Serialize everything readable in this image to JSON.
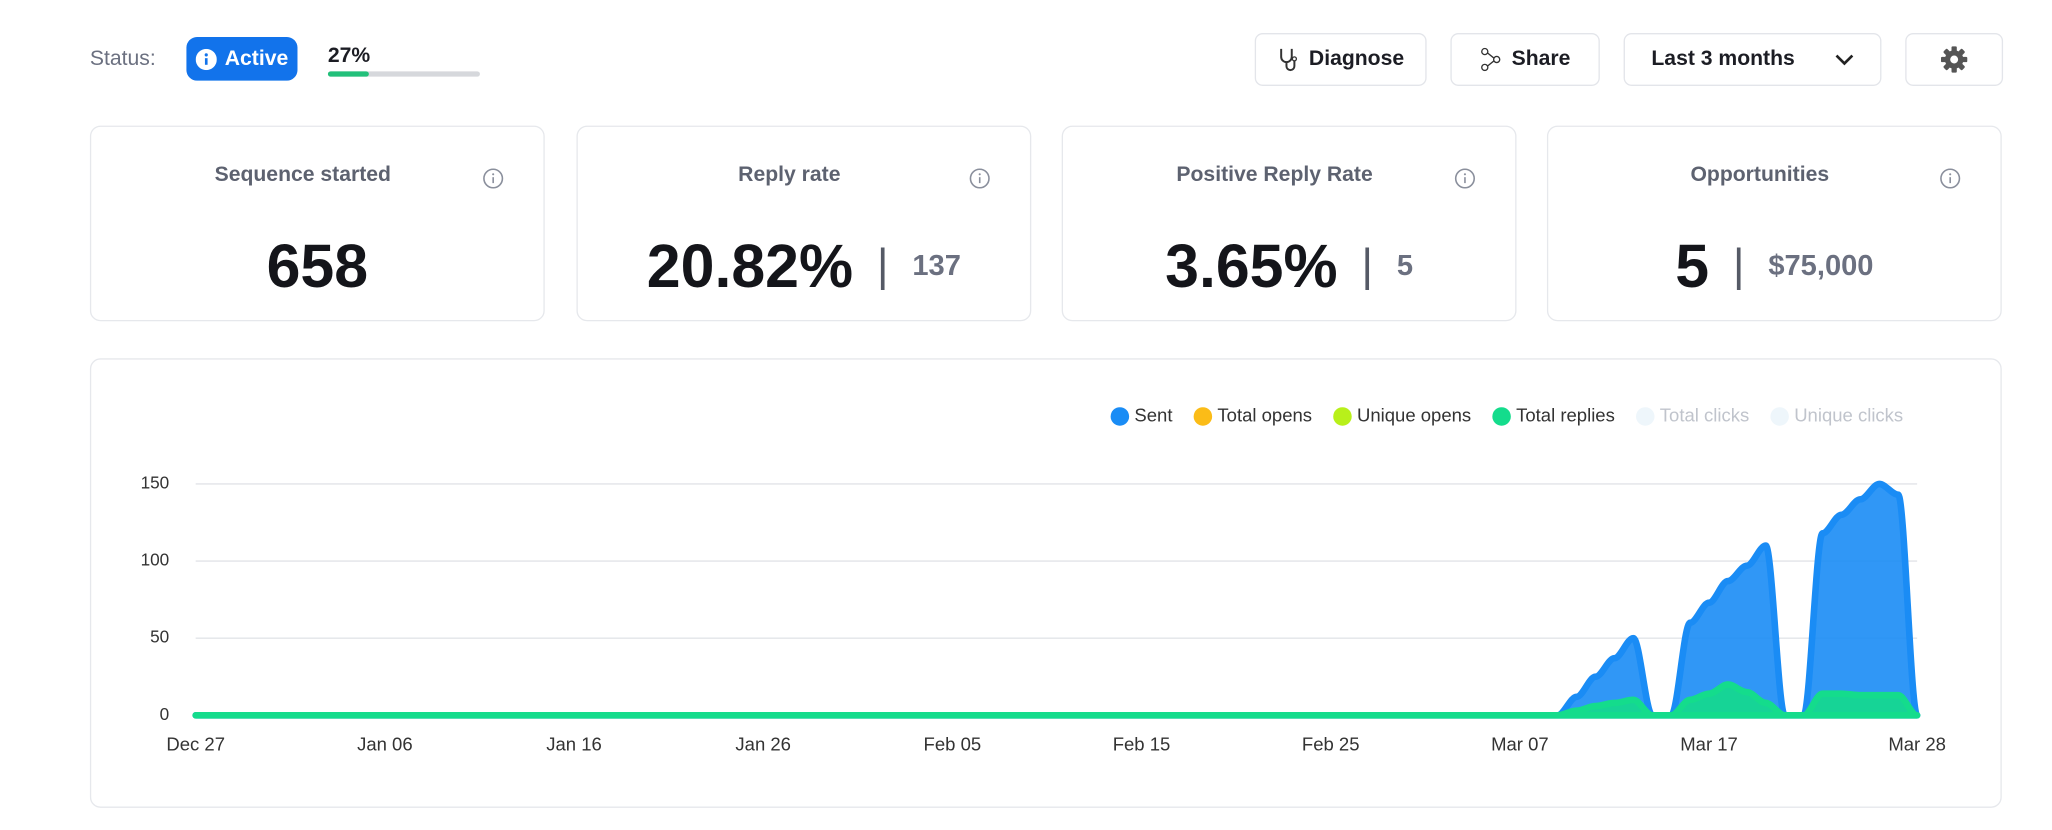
{
  "status": {
    "label": "Status:",
    "badge": "Active",
    "progress": {
      "value": 27,
      "value_label": "27%"
    }
  },
  "toolbar": {
    "diagnose": "Diagnose",
    "share": "Share",
    "range": "Last 3 months"
  },
  "cards": [
    {
      "title": "Sequence started",
      "value": "658"
    },
    {
      "title": "Reply rate",
      "value": "20.82%",
      "secondary": "137"
    },
    {
      "title": "Positive Reply Rate",
      "value": "3.65%",
      "secondary": "5"
    },
    {
      "title": "Opportunities",
      "value": "5",
      "secondary": "$75,000"
    }
  ],
  "chart_data": {
    "type": "area",
    "categories": [
      "Dec 27",
      null,
      null,
      null,
      null,
      null,
      null,
      null,
      null,
      null,
      "Jan 06",
      null,
      null,
      null,
      null,
      null,
      null,
      null,
      null,
      null,
      "Jan 16",
      null,
      null,
      null,
      null,
      null,
      null,
      null,
      null,
      null,
      "Jan 26",
      null,
      null,
      null,
      null,
      null,
      null,
      null,
      null,
      null,
      "Feb 05",
      null,
      null,
      null,
      null,
      null,
      null,
      null,
      null,
      null,
      "Feb 15",
      null,
      null,
      null,
      null,
      null,
      null,
      null,
      null,
      null,
      "Feb 25",
      null,
      null,
      null,
      null,
      null,
      null,
      null,
      null,
      null,
      "Mar 07",
      null,
      null,
      null,
      null,
      null,
      null,
      null,
      null,
      null,
      "Mar 17",
      null,
      null,
      null,
      null,
      null,
      null,
      null,
      null,
      null,
      null,
      "Mar 28"
    ],
    "series": [
      {
        "name": "Sent",
        "color": "#1a8cf5",
        "visible": true,
        "values": [
          0,
          0,
          0,
          0,
          0,
          0,
          0,
          0,
          0,
          0,
          0,
          0,
          0,
          0,
          0,
          0,
          0,
          0,
          0,
          0,
          0,
          0,
          0,
          0,
          0,
          0,
          0,
          0,
          0,
          0,
          0,
          0,
          0,
          0,
          0,
          0,
          0,
          0,
          0,
          0,
          0,
          0,
          0,
          0,
          0,
          0,
          0,
          0,
          0,
          0,
          0,
          0,
          0,
          0,
          0,
          0,
          0,
          0,
          0,
          0,
          0,
          0,
          0,
          0,
          0,
          0,
          0,
          0,
          0,
          0,
          0,
          0,
          0,
          12,
          25,
          37,
          50,
          0,
          0,
          60,
          73,
          87,
          97,
          110,
          0,
          0,
          118,
          130,
          140,
          150,
          143,
          0
        ]
      },
      {
        "name": "Total opens",
        "color": "#fbbc17",
        "visible": true,
        "values": [
          0,
          0,
          0,
          0,
          0,
          0,
          0,
          0,
          0,
          0,
          0,
          0,
          0,
          0,
          0,
          0,
          0,
          0,
          0,
          0,
          0,
          0,
          0,
          0,
          0,
          0,
          0,
          0,
          0,
          0,
          0,
          0,
          0,
          0,
          0,
          0,
          0,
          0,
          0,
          0,
          0,
          0,
          0,
          0,
          0,
          0,
          0,
          0,
          0,
          0,
          0,
          0,
          0,
          0,
          0,
          0,
          0,
          0,
          0,
          0,
          0,
          0,
          0,
          0,
          0,
          0,
          0,
          0,
          0,
          0,
          0,
          0,
          0,
          0,
          0,
          0,
          0,
          0,
          0,
          0,
          0,
          0,
          0,
          0,
          0,
          0,
          0,
          0,
          0,
          0,
          0,
          0
        ]
      },
      {
        "name": "Unique opens",
        "color": "#b8f01a",
        "visible": true,
        "values": [
          0,
          0,
          0,
          0,
          0,
          0,
          0,
          0,
          0,
          0,
          0,
          0,
          0,
          0,
          0,
          0,
          0,
          0,
          0,
          0,
          0,
          0,
          0,
          0,
          0,
          0,
          0,
          0,
          0,
          0,
          0,
          0,
          0,
          0,
          0,
          0,
          0,
          0,
          0,
          0,
          0,
          0,
          0,
          0,
          0,
          0,
          0,
          0,
          0,
          0,
          0,
          0,
          0,
          0,
          0,
          0,
          0,
          0,
          0,
          0,
          0,
          0,
          0,
          0,
          0,
          0,
          0,
          0,
          0,
          0,
          0,
          0,
          0,
          0,
          0,
          0,
          0,
          0,
          0,
          0,
          0,
          0,
          0,
          0,
          0,
          0,
          0,
          0,
          0,
          0,
          0,
          0
        ]
      },
      {
        "name": "Total replies",
        "color": "#14dc8c",
        "visible": true,
        "values": [
          0,
          0,
          0,
          0,
          0,
          0,
          0,
          0,
          0,
          0,
          0,
          0,
          0,
          0,
          0,
          0,
          0,
          0,
          0,
          0,
          0,
          0,
          0,
          0,
          0,
          0,
          0,
          0,
          0,
          0,
          0,
          0,
          0,
          0,
          0,
          0,
          0,
          0,
          0,
          0,
          0,
          0,
          0,
          0,
          0,
          0,
          0,
          0,
          0,
          0,
          0,
          0,
          0,
          0,
          0,
          0,
          0,
          0,
          0,
          0,
          0,
          0,
          0,
          0,
          0,
          0,
          0,
          0,
          0,
          0,
          0,
          0,
          0,
          3,
          6,
          8,
          10,
          0,
          0,
          10,
          14,
          20,
          15,
          8,
          0,
          0,
          14,
          14,
          13,
          13,
          13,
          0
        ]
      },
      {
        "name": "Total clicks",
        "color": "#eef6fb",
        "visible": false
      },
      {
        "name": "Unique clicks",
        "color": "#eef6fb",
        "visible": false
      }
    ],
    "ylim": [
      0,
      150
    ],
    "yticks": [
      0,
      50,
      100,
      150
    ],
    "grid": true
  }
}
